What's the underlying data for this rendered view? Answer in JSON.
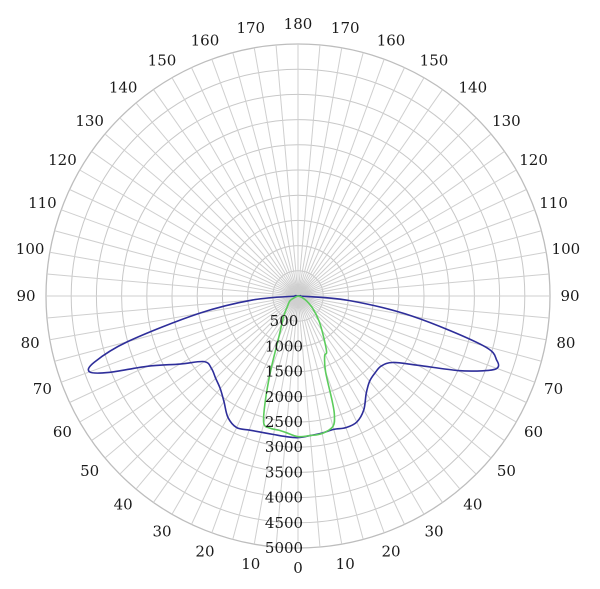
{
  "chart_data": {
    "type": "polar",
    "radial_axis": {
      "range": [
        0,
        5000
      ],
      "tick_values": [
        500,
        1000,
        1500,
        2000,
        2500,
        3000,
        3500,
        4000,
        4500,
        5000
      ],
      "tick_labels": [
        "500",
        "1000",
        "1500",
        "2000",
        "2500",
        "3000",
        "3500",
        "4000",
        "4500",
        "5000"
      ]
    },
    "angular_axis": {
      "step_deg": 5,
      "labels_left": [
        "10",
        "20",
        "30",
        "40",
        "50",
        "60",
        "70",
        "80",
        "90",
        "100",
        "110",
        "120",
        "130",
        "140",
        "150",
        "160",
        "170"
      ],
      "labels_right": [
        "10",
        "20",
        "30",
        "40",
        "50",
        "60",
        "70",
        "80",
        "90",
        "100",
        "110",
        "120",
        "130",
        "140",
        "150",
        "160",
        "170"
      ],
      "bottom_label": "0",
      "top_label": "180",
      "label_values": [
        10,
        20,
        30,
        40,
        50,
        60,
        70,
        80,
        90,
        100,
        110,
        120,
        130,
        140,
        150,
        160,
        170
      ]
    },
    "grid": true,
    "series": [
      {
        "color": "#2e2e9a",
        "points": [
          {
            "angle": -90,
            "value": 20
          },
          {
            "angle": -85,
            "value": 900
          },
          {
            "angle": -80,
            "value": 2000
          },
          {
            "angle": -75,
            "value": 3500
          },
          {
            "angle": -72,
            "value": 4250
          },
          {
            "angle": -70,
            "value": 4400
          },
          {
            "angle": -68,
            "value": 4050
          },
          {
            "angle": -65,
            "value": 3300
          },
          {
            "angle": -60,
            "value": 2700
          },
          {
            "angle": -55,
            "value": 2270
          },
          {
            "angle": -50,
            "value": 2240
          },
          {
            "angle": -45,
            "value": 2310
          },
          {
            "angle": -40,
            "value": 2400
          },
          {
            "angle": -35,
            "value": 2560
          },
          {
            "angle": -30,
            "value": 2780
          },
          {
            "angle": -25,
            "value": 2880
          },
          {
            "angle": -20,
            "value": 2830
          },
          {
            "angle": -15,
            "value": 2800
          },
          {
            "angle": -10,
            "value": 2790
          },
          {
            "angle": -5,
            "value": 2800
          },
          {
            "angle": 0,
            "value": 2810
          },
          {
            "angle": 5,
            "value": 2780
          },
          {
            "angle": 10,
            "value": 2760
          },
          {
            "angle": 15,
            "value": 2740
          },
          {
            "angle": 20,
            "value": 2780
          },
          {
            "angle": 25,
            "value": 2760
          },
          {
            "angle": 30,
            "value": 2610
          },
          {
            "angle": 35,
            "value": 2360
          },
          {
            "angle": 40,
            "value": 2210
          },
          {
            "angle": 45,
            "value": 2160
          },
          {
            "angle": 50,
            "value": 2160
          },
          {
            "angle": 55,
            "value": 2300
          },
          {
            "angle": 60,
            "value": 2750
          },
          {
            "angle": 65,
            "value": 3500
          },
          {
            "angle": 68,
            "value": 3960
          },
          {
            "angle": 70,
            "value": 4200
          },
          {
            "angle": 72,
            "value": 4150
          },
          {
            "angle": 75,
            "value": 3800
          },
          {
            "angle": 80,
            "value": 2300
          },
          {
            "angle": 85,
            "value": 1000
          },
          {
            "angle": 90,
            "value": 20
          }
        ]
      },
      {
        "color": "#5ccc5c",
        "points": [
          {
            "angle": -75,
            "value": 20
          },
          {
            "angle": -60,
            "value": 180
          },
          {
            "angle": -45,
            "value": 300
          },
          {
            "angle": -35,
            "value": 500
          },
          {
            "angle": -25,
            "value": 900
          },
          {
            "angle": -20,
            "value": 1600
          },
          {
            "angle": -17,
            "value": 2250
          },
          {
            "angle": -15,
            "value": 2620
          },
          {
            "angle": -12,
            "value": 2680
          },
          {
            "angle": -8,
            "value": 2690
          },
          {
            "angle": -5,
            "value": 2720
          },
          {
            "angle": 0,
            "value": 2790
          },
          {
            "angle": 5,
            "value": 2780
          },
          {
            "angle": 10,
            "value": 2770
          },
          {
            "angle": 15,
            "value": 2680
          },
          {
            "angle": 17,
            "value": 2470
          },
          {
            "angle": 18,
            "value": 2200
          },
          {
            "angle": 20,
            "value": 1600
          },
          {
            "angle": 24,
            "value": 1300
          },
          {
            "angle": 27,
            "value": 1250
          },
          {
            "angle": 32,
            "value": 960
          },
          {
            "angle": 40,
            "value": 650
          },
          {
            "angle": 50,
            "value": 380
          },
          {
            "angle": 60,
            "value": 200
          },
          {
            "angle": 70,
            "value": 80
          },
          {
            "angle": 80,
            "value": 20
          }
        ]
      }
    ]
  }
}
